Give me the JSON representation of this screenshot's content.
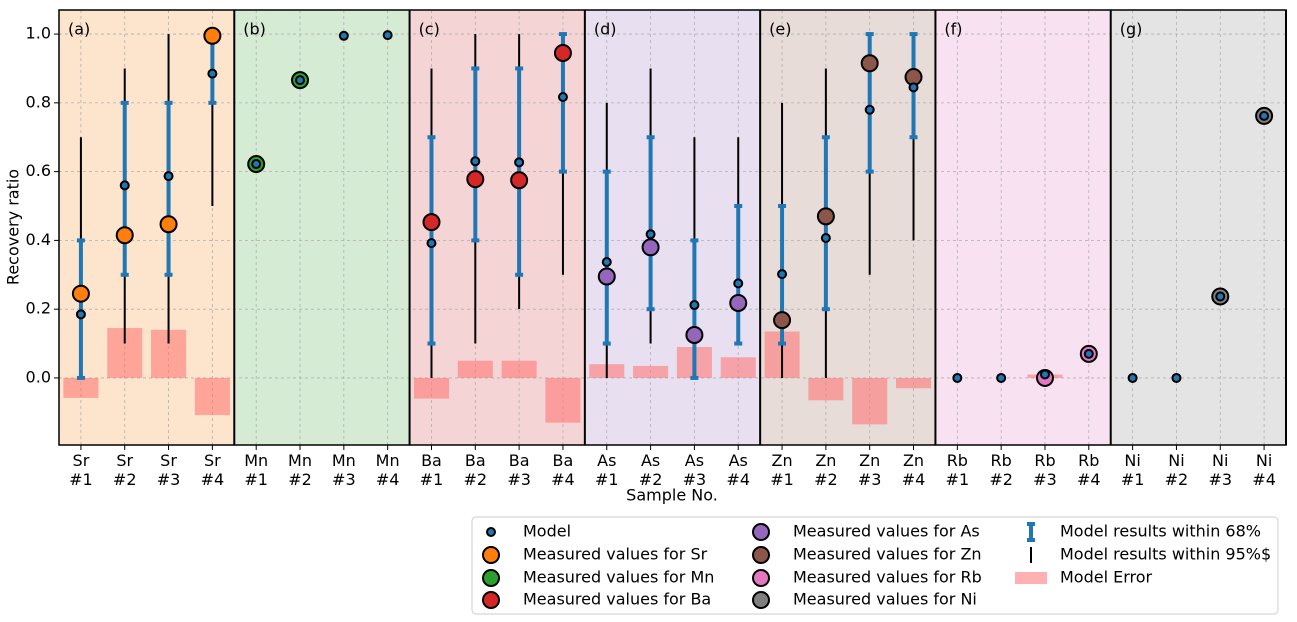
{
  "chart_data": {
    "type": "errorbar",
    "xlabel": "Sample No.",
    "ylabel": "Recovery ratio",
    "categories": [
      "Sr\n#1",
      "Sr\n#2",
      "Sr\n#3",
      "Sr\n#4",
      "Mn\n#1",
      "Mn\n#2",
      "Mn\n#3",
      "Mn\n#4",
      "Ba\n#1",
      "Ba\n#2",
      "Ba\n#3",
      "Ba\n#4",
      "As\n#1",
      "As\n#2",
      "As\n#3",
      "As\n#4",
      "Zn\n#1",
      "Zn\n#2",
      "Zn\n#3",
      "Zn\n#4",
      "Rb\n#1",
      "Rb\n#2",
      "Rb\n#3",
      "Rb\n#4",
      "Ni\n#1",
      "Ni\n#2",
      "Ni\n#3",
      "Ni\n#4"
    ],
    "ylim": [
      -0.195,
      1.07
    ],
    "yticks": [
      {
        "value": 0,
        "label": "0.0"
      },
      0.2,
      0.4,
      0.6,
      0.8,
      {
        "value": 1,
        "label": "1.0"
      }
    ],
    "grid": true,
    "panels": [
      {
        "label": "(a)",
        "background": "#fde4cd"
      },
      {
        "label": "(b)",
        "background": "#d5ebd4"
      },
      {
        "label": "(c)",
        "background": "#f5d4d5"
      },
      {
        "label": "(d)",
        "background": "#e8e0f0"
      },
      {
        "label": "(e)",
        "background": "#e8dcd9"
      },
      {
        "label": "(f)",
        "background": "#f8e2f2"
      },
      {
        "label": "(g)",
        "background": "#e4e4e4"
      }
    ],
    "model": {
      "name": "Model",
      "color": "#1f77b4",
      "values": [
        0.185,
        0.56,
        0.587,
        0.885,
        0.622,
        0.866,
        0.995,
        0.997,
        0.392,
        0.63,
        0.627,
        0.817,
        0.337,
        0.418,
        0.212,
        0.275,
        0.302,
        0.407,
        0.78,
        0.845,
        0,
        0,
        0.01,
        0.07,
        0,
        0,
        0.237,
        0.762
      ]
    },
    "measured": [
      {
        "name": "Measured values for Sr",
        "color": "#ff7f0e",
        "values": [
          0.245,
          0.415,
          0.447,
          0.995
        ]
      },
      {
        "name": "Measured values for Mn",
        "color": "#2ca02c",
        "values": [
          0.622,
          0.866,
          null,
          null
        ]
      },
      {
        "name": "Measured values for Ba",
        "color": "#d62728",
        "values": [
          0.453,
          0.578,
          0.575,
          0.945
        ]
      },
      {
        "name": "Measured values for As",
        "color": "#9467bd",
        "values": [
          0.295,
          0.38,
          0.125,
          0.218
        ]
      },
      {
        "name": "Measured values for Zn",
        "color": "#8c564b",
        "values": [
          0.168,
          0.47,
          0.915,
          0.875
        ]
      },
      {
        "name": "Measured values for Rb",
        "color": "#e377c2",
        "values": [
          null,
          null,
          0,
          0.07
        ]
      },
      {
        "name": "Measured values for Ni",
        "color": "#7f7f7f",
        "values": [
          null,
          null,
          0.237,
          0.762
        ]
      }
    ],
    "ci68": {
      "name": "Model results within 68%",
      "color": "#1f77b4",
      "low": [
        0,
        0.3,
        0.3,
        0.8,
        null,
        null,
        null,
        null,
        0.1,
        0.4,
        0.3,
        0.6,
        0.1,
        0.2,
        0,
        0.1,
        0.1,
        0.2,
        0.6,
        0.7,
        null,
        null,
        null,
        null,
        null,
        null,
        null,
        null
      ],
      "high": [
        0.4,
        0.8,
        0.8,
        1,
        null,
        null,
        null,
        null,
        0.7,
        0.9,
        0.9,
        1,
        0.6,
        0.7,
        0.4,
        0.5,
        0.5,
        0.7,
        1,
        1,
        null,
        null,
        null,
        null,
        null,
        null,
        null,
        null
      ]
    },
    "ci95": {
      "name": "Model results within 95%$",
      "color": "#000000",
      "low": [
        0,
        0.1,
        0.1,
        0.5,
        null,
        null,
        null,
        null,
        0,
        0.1,
        0.2,
        0.3,
        0,
        0.1,
        0,
        0.1,
        0,
        0,
        0.3,
        0.4,
        null,
        null,
        null,
        null,
        null,
        null,
        null,
        null
      ],
      "high": [
        0.7,
        0.9,
        1,
        1,
        null,
        null,
        null,
        null,
        0.9,
        1,
        1,
        1,
        0.8,
        0.9,
        0.7,
        0.7,
        0.8,
        0.9,
        1,
        1,
        null,
        null,
        null,
        null,
        null,
        null,
        null,
        null
      ]
    },
    "model_error": {
      "name": "Model Error",
      "color": "#ff7070",
      "values": [
        -0.058,
        0.145,
        0.14,
        -0.108,
        null,
        null,
        null,
        null,
        -0.06,
        0.05,
        0.05,
        -0.13,
        0.04,
        0.035,
        0.09,
        0.06,
        0.135,
        -0.065,
        -0.135,
        -0.03,
        null,
        null,
        0.01,
        null,
        null,
        null,
        null,
        null
      ]
    }
  }
}
